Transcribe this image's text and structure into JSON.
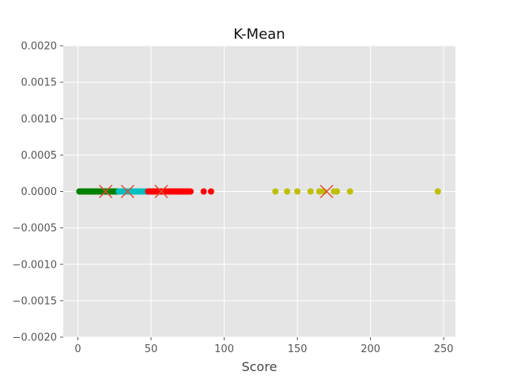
{
  "chart_data": {
    "type": "scatter",
    "title": "K-Mean",
    "xlabel": "Score",
    "ylabel": "",
    "xlim": [
      -10,
      258
    ],
    "ylim": [
      -0.002,
      0.002
    ],
    "x_ticks": [
      0,
      50,
      100,
      150,
      200,
      250
    ],
    "y_ticks": [
      -0.002,
      -0.0015,
      -0.001,
      -0.0005,
      0.0,
      0.0005,
      0.001,
      0.0015,
      0.002
    ],
    "x_tick_labels": [
      "0",
      "50",
      "100",
      "150",
      "200",
      "250"
    ],
    "y_tick_labels": [
      "−0.0020",
      "−0.0015",
      "−0.0010",
      "−0.0005",
      "0.0000",
      "0.0005",
      "0.0010",
      "0.0015",
      "0.0020"
    ],
    "grid": true,
    "background": "#e5e5e5",
    "series": [
      {
        "color": "#008000",
        "x": [
          1,
          2,
          3,
          4,
          5,
          6,
          7,
          8,
          9,
          10,
          11,
          12,
          13,
          14,
          15,
          16,
          17,
          18,
          19,
          20,
          21,
          22,
          23,
          24,
          25,
          26,
          27
        ],
        "y": [
          0,
          0,
          0,
          0,
          0,
          0,
          0,
          0,
          0,
          0,
          0,
          0,
          0,
          0,
          0,
          0,
          0,
          0,
          0,
          0,
          0,
          0,
          0,
          0,
          0,
          0,
          0
        ]
      },
      {
        "color": "#00bfbf",
        "x": [
          28,
          29,
          30,
          31,
          32,
          33,
          34,
          35,
          36,
          37,
          38,
          39,
          40,
          41,
          42,
          43,
          44,
          45,
          46,
          47
        ],
        "y": [
          0,
          0,
          0,
          0,
          0,
          0,
          0,
          0,
          0,
          0,
          0,
          0,
          0,
          0,
          0,
          0,
          0,
          0,
          0,
          0
        ]
      },
      {
        "color": "#ff0000",
        "x": [
          48,
          49,
          50,
          51,
          52,
          53,
          54,
          55,
          56,
          57,
          58,
          59,
          60,
          61,
          62,
          63,
          64,
          65,
          66,
          67,
          68,
          69,
          70,
          71,
          72,
          73,
          74,
          75,
          76,
          77,
          86,
          91
        ],
        "y": [
          0,
          0,
          0,
          0,
          0,
          0,
          0,
          0,
          0,
          0,
          0,
          0,
          0,
          0,
          0,
          0,
          0,
          0,
          0,
          0,
          0,
          0,
          0,
          0,
          0,
          0,
          0,
          0,
          0,
          0,
          0,
          0
        ]
      },
      {
        "color": "#bfbf00",
        "x": [
          135,
          143,
          150,
          159,
          165,
          168,
          175,
          177,
          186,
          246
        ],
        "y": [
          0,
          0,
          0,
          0,
          0,
          0,
          0,
          0,
          0,
          0
        ]
      }
    ],
    "centroids": {
      "color": "#e24a33",
      "x": [
        19,
        34,
        57,
        170
      ],
      "y": [
        0,
        0,
        0,
        0
      ]
    }
  }
}
